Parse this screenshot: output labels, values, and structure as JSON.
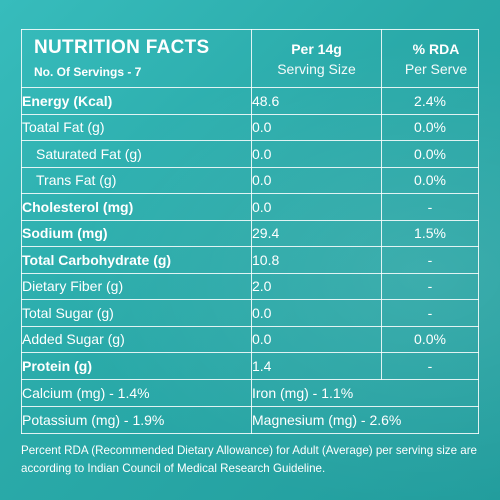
{
  "header": {
    "title": "NUTRITION FACTS",
    "servings": "No. Of Servings - 7",
    "col2_title": "Per 14g",
    "col2_sub": "Serving Size",
    "col3_title": "% RDA",
    "col3_sub": "Per Serve"
  },
  "rows": [
    {
      "label": "Energy (Kcal)",
      "value": "48.6",
      "rda": "2.4%"
    },
    {
      "label": "Toatal Fat (g)",
      "value": "0.0",
      "rda": "0.0%"
    },
    {
      "label": "Saturated Fat (g)",
      "value": "0.0",
      "rda": "0.0%"
    },
    {
      "label": "Trans Fat (g)",
      "value": "0.0",
      "rda": "0.0%"
    },
    {
      "label": "Cholesterol (mg)",
      "value": "0.0",
      "rda": "-"
    },
    {
      "label": "Sodium (mg)",
      "value": "29.4",
      "rda": "1.5%"
    },
    {
      "label": "Total Carbohydrate (g)",
      "value": "10.8",
      "rda": "-"
    },
    {
      "label": "Dietary Fiber (g)",
      "value": "2.0",
      "rda": "-"
    },
    {
      "label": "Total Sugar (g)",
      "value": "0.0",
      "rda": "-"
    },
    {
      "label": "Added Sugar (g)",
      "value": "0.0",
      "rda": "0.0%"
    },
    {
      "label": "Protein (g)",
      "value": "1.4",
      "rda": "-"
    }
  ],
  "minerals": [
    {
      "left": "Calcium (mg) - 1.4%",
      "right": "Iron (mg) - 1.1%"
    },
    {
      "left": "Potassium (mg) - 1.9%",
      "right": "Magnesium (mg) - 2.6%"
    }
  ],
  "footnote": "Percent RDA (Recommended Dietary Allowance) for Adult (Average) per serving size are according to Indian Council of Medical Research Guideline.",
  "colors": {
    "background": "#2fb2b2",
    "text": "#ffffff",
    "rule": "#ffffff"
  }
}
